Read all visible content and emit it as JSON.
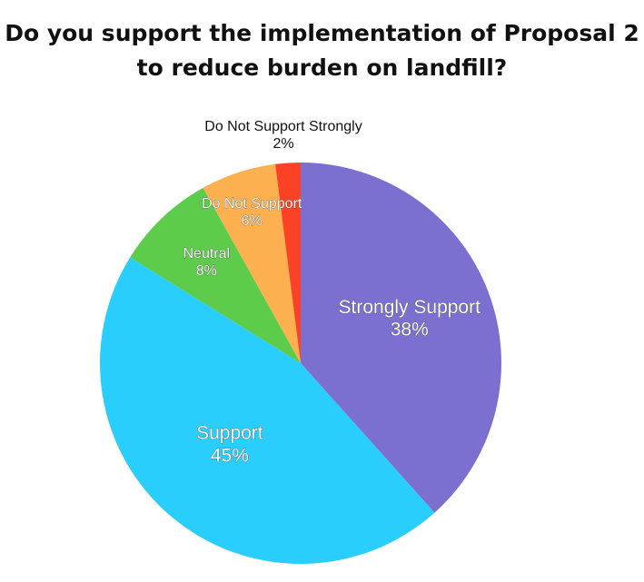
{
  "chart_data": {
    "type": "pie",
    "title_lines": [
      "Do you support the implementation of Proposal 2",
      "to reduce burden on landfill?"
    ],
    "slices": [
      {
        "label": "Strongly Support",
        "value": 38,
        "pct_label": "38%",
        "color": "#7b6fd0"
      },
      {
        "label": "Support",
        "value": 45,
        "pct_label": "45%",
        "color": "#29cefc"
      },
      {
        "label": "Neutral",
        "value": 8,
        "pct_label": "8%",
        "color": "#5dcc4a"
      },
      {
        "label": "Do Not Support",
        "value": 6,
        "pct_label": "6%",
        "color": "#fdb050"
      },
      {
        "label": "Do Not Support Strongly",
        "value": 2,
        "pct_label": "2%",
        "color": "#fc4226"
      }
    ]
  }
}
